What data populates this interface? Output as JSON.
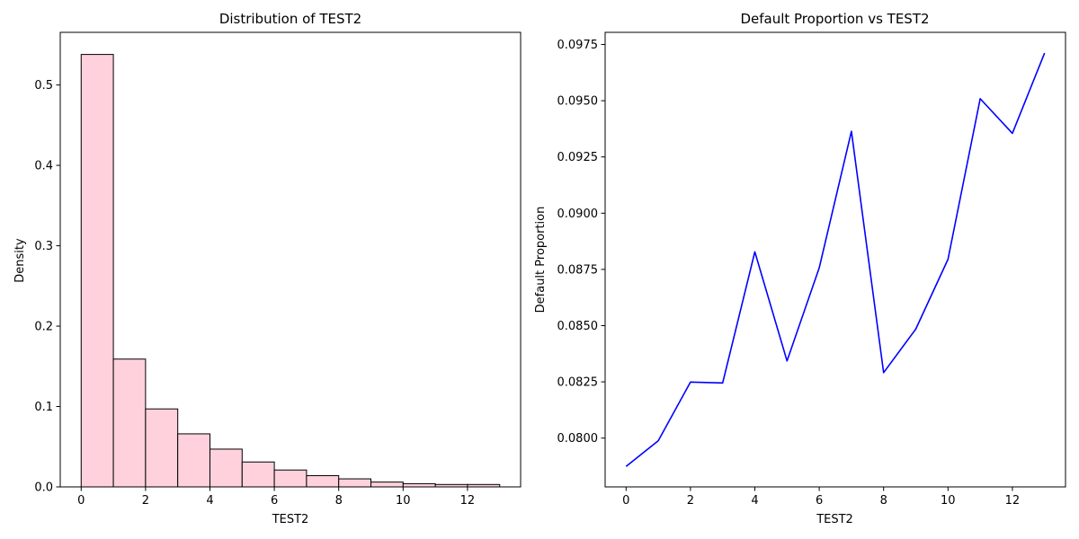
{
  "colors": {
    "hist_fill": "#ffd1dc",
    "hist_edge": "#000000",
    "line": "#0000ff"
  },
  "chart_data": [
    {
      "type": "bar",
      "title": "Distribution of TEST2",
      "xlabel": "TEST2",
      "ylabel": "Density",
      "bin_edges": [
        0,
        1,
        2,
        3,
        4,
        5,
        6,
        7,
        8,
        9,
        10,
        11,
        12,
        13
      ],
      "values": [
        0.538,
        0.159,
        0.097,
        0.066,
        0.047,
        0.031,
        0.021,
        0.014,
        0.01,
        0.006,
        0.004,
        0.003,
        0.003
      ],
      "xlim": [
        -0.65,
        13.65
      ],
      "ylim": [
        0,
        0.5655
      ],
      "xticks": [
        0,
        2,
        4,
        6,
        8,
        10,
        12
      ],
      "yticks": [
        0.0,
        0.1,
        0.2,
        0.3,
        0.4,
        0.5
      ],
      "ytick_labels": [
        "0.0",
        "0.1",
        "0.2",
        "0.3",
        "0.4",
        "0.5"
      ],
      "grid": false
    },
    {
      "type": "line",
      "title": "Default Proportion vs TEST2",
      "xlabel": "TEST2",
      "ylabel": "Default Proportion",
      "x": [
        0,
        1,
        2,
        3,
        4,
        5,
        6,
        7,
        8,
        9,
        10,
        11,
        12,
        13
      ],
      "y": [
        0.07874,
        0.07988,
        0.08249,
        0.08245,
        0.08828,
        0.08343,
        0.08757,
        0.09364,
        0.08291,
        0.08485,
        0.08795,
        0.09509,
        0.09355,
        0.09712
      ],
      "xlim": [
        -0.65,
        13.65
      ],
      "ylim": [
        0.07783,
        0.09804
      ],
      "xticks": [
        0,
        2,
        4,
        6,
        8,
        10,
        12
      ],
      "yticks": [
        0.08,
        0.0825,
        0.085,
        0.0875,
        0.09,
        0.0925,
        0.095,
        0.0975
      ],
      "ytick_labels": [
        "0.0800",
        "0.0825",
        "0.0850",
        "0.0875",
        "0.0900",
        "0.0925",
        "0.0950",
        "0.0975"
      ],
      "grid": false
    }
  ]
}
